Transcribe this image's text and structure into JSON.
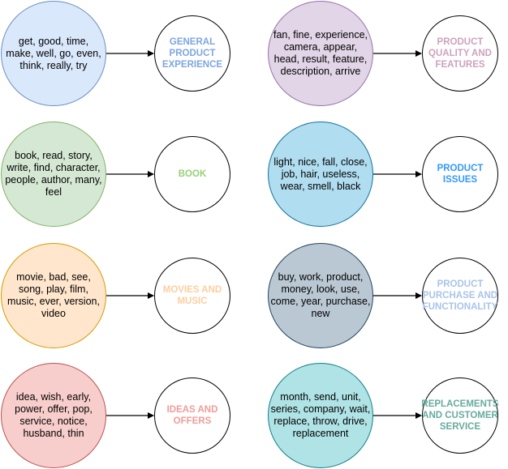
{
  "rows": [
    {
      "left": {
        "words": "get, good, time,\nmake, well, go, even,\nthink, really, try",
        "fill": "#dae8fc",
        "stroke": "#6c8ebf",
        "topic": "GENERAL\nPRODUCT\nEXPERIENCE",
        "topic_color": "#7ea6e0"
      },
      "right": {
        "words": "fan, fine, experience,\ncamera, appear,\nhead, result, feature,\ndescription, arrive",
        "fill": "#e1d5e7",
        "stroke": "#9673a6",
        "topic": "PRODUCT\nQUALITY AND\nFEATURES",
        "topic_color": "#cda2be"
      }
    },
    {
      "left": {
        "words": "book, read, story,\nwrite, find, character,\npeople, author, many,\nfeel",
        "fill": "#d5e8d4",
        "stroke": "#82b366",
        "topic": "BOOK",
        "topic_color": "#97d077"
      },
      "right": {
        "words": "light, nice, fall, close,\njob, hair, useless,\nwear, smell, black",
        "fill": "#b1ddf0",
        "stroke": "#10739e",
        "topic": "PRODUCT\nISSUES",
        "topic_color": "#3399ff"
      }
    },
    {
      "left": {
        "words": "movie, bad, see,\nsong, play, film,\nmusic, ever, version,\nvideo",
        "fill": "#ffe6cc",
        "stroke": "#d79b00",
        "topic": "MOVIES AND\nMUSIC",
        "topic_color": "#ffce9f"
      },
      "right": {
        "words": "buy, work, product,\nmoney, look, use,\ncome, year, purchase,\nnew",
        "fill": "#bac8d3",
        "stroke": "#23445d",
        "topic": "PRODUCT\nPURCHASE AND\nFUNCTIONALITY",
        "topic_color": "#a9c4eb"
      }
    },
    {
      "left": {
        "words": "idea, wish, early,\npower, offer, pop,\nservice, notice,\nhusband, thin",
        "fill": "#f8cecc",
        "stroke": "#b85450",
        "topic": "IDEAS AND\nOFFERS",
        "topic_color": "#f19c99"
      },
      "right": {
        "words": "month, send, unit,\nseries, company, wait,\nreplace, throw, drive,\nreplacement",
        "fill": "#b0e3e6",
        "stroke": "#0e8088",
        "topic": "REPLACEMENTS\nAND CUSTOMER\nSERVICE",
        "topic_color": "#67ab9f"
      }
    }
  ]
}
